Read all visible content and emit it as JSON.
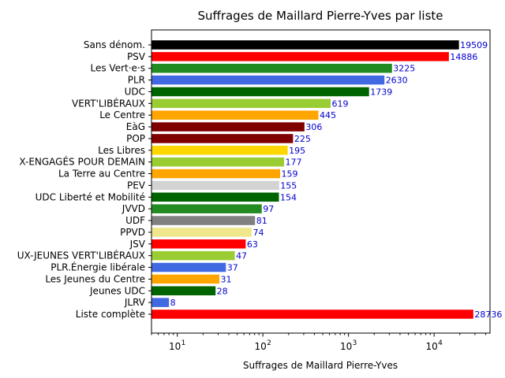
{
  "chart_data": {
    "type": "bar",
    "orientation": "horizontal",
    "title": "Suffrages de Maillard Pierre-Yves par liste",
    "xlabel": "Suffrages de Maillard Pierre-Yves",
    "ylabel": "",
    "xscale": "log",
    "xlim": [
      5,
      45000
    ],
    "xticks": [
      10,
      100,
      1000,
      10000
    ],
    "xtick_labels": [
      {
        "base": "10",
        "exp": "1"
      },
      {
        "base": "10",
        "exp": "2"
      },
      {
        "base": "10",
        "exp": "3"
      },
      {
        "base": "10",
        "exp": "4"
      }
    ],
    "grid": false,
    "categories": [
      "Sans dénom.",
      "PSV",
      "Les Vert·e·s",
      "PLR",
      "UDC",
      "VERT'LIBÉRAUX",
      "Le Centre",
      "EàG",
      "POP",
      "Les Libres",
      "X-ENGAGÉS POUR DEMAIN",
      "La Terre au Centre",
      "PEV",
      "UDC Liberté et Mobilité",
      "JVVD",
      "UDF",
      "PPVD",
      "JSV",
      "UX-JEUNES VERT'LIBÉRAUX",
      "PLR.Énergie libérale",
      "Les Jeunes du Centre",
      "Jeunes UDC",
      "JLRV",
      "Liste complète"
    ],
    "values": [
      19509,
      14886,
      3225,
      2630,
      1739,
      619,
      445,
      306,
      225,
      195,
      177,
      159,
      155,
      154,
      97,
      81,
      74,
      63,
      47,
      37,
      31,
      28,
      8,
      28736
    ],
    "value_labels": [
      "19509",
      "14886",
      "3225",
      "2630",
      "1739",
      "619",
      "445",
      "306",
      "225",
      "195",
      "177",
      "159",
      "155",
      "154",
      "97",
      "81",
      "74",
      "63",
      "47",
      "37",
      "31",
      "28",
      "8",
      "28736"
    ],
    "colors": [
      "#000000",
      "#ff0000",
      "#228b22",
      "#4169e1",
      "#006400",
      "#9acd32",
      "#ffa500",
      "#800000",
      "#800000",
      "#ffd700",
      "#9acd32",
      "#ffa500",
      "#d3d3d3",
      "#006400",
      "#228b22",
      "#808080",
      "#f0e68c",
      "#ff0000",
      "#9acd32",
      "#4169e1",
      "#ffa500",
      "#006400",
      "#4169e1",
      "#ff0000"
    ]
  }
}
